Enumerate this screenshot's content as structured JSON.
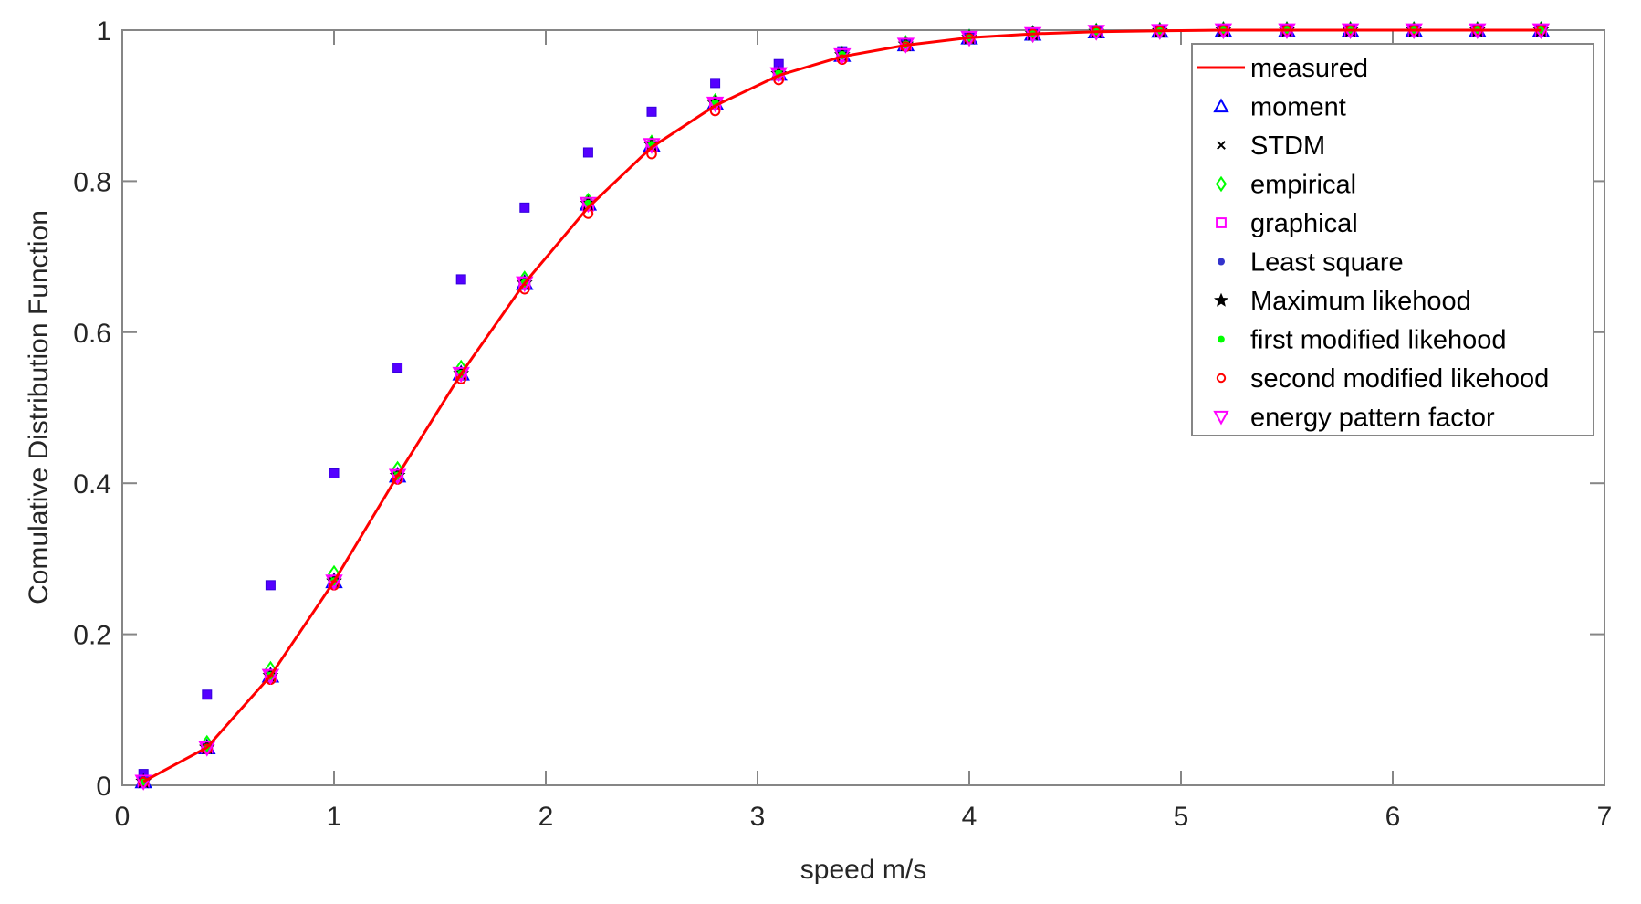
{
  "chart_data": {
    "type": "line",
    "title": "",
    "xlabel": "speed m/s",
    "ylabel": "Comulative Distribution Function",
    "xlim": [
      0,
      7
    ],
    "ylim": [
      0,
      1
    ],
    "xticks": [
      "0",
      "1",
      "2",
      "3",
      "4",
      "5",
      "6",
      "7"
    ],
    "yticks": [
      "0",
      "0.2",
      "0.4",
      "0.6",
      "0.8",
      "1"
    ],
    "grid": false,
    "legend_position": "northeast",
    "x": [
      0.1,
      0.4,
      0.7,
      1.0,
      1.3,
      1.6,
      1.9,
      2.2,
      2.5,
      2.8,
      3.1,
      3.4,
      3.7,
      4.0,
      4.3,
      4.6,
      4.9,
      5.2,
      5.5,
      5.8,
      6.1,
      6.4,
      6.7
    ],
    "series": [
      {
        "name": "measured",
        "style": "line",
        "color": "#ff0000",
        "values": [
          0.005,
          0.05,
          0.145,
          0.27,
          0.41,
          0.545,
          0.665,
          0.765,
          0.845,
          0.9,
          0.94,
          0.965,
          0.98,
          0.99,
          0.995,
          0.998,
          0.999,
          1,
          1,
          1,
          1,
          1,
          1
        ]
      },
      {
        "name": "moment",
        "style": "marker",
        "marker": "triangle-up",
        "color": "#0000ff",
        "values": [
          0.005,
          0.05,
          0.145,
          0.27,
          0.41,
          0.545,
          0.665,
          0.77,
          0.848,
          0.903,
          0.942,
          0.967,
          0.981,
          0.99,
          0.995,
          0.998,
          0.999,
          1,
          1,
          1,
          1,
          1,
          1
        ]
      },
      {
        "name": "STDM",
        "style": "marker",
        "marker": "x",
        "color": "#000000",
        "values": [
          0.005,
          0.05,
          0.145,
          0.27,
          0.41,
          0.545,
          0.665,
          0.77,
          0.848,
          0.903,
          0.942,
          0.967,
          0.981,
          0.99,
          0.995,
          0.998,
          0.999,
          1,
          1,
          1,
          1,
          1,
          1
        ]
      },
      {
        "name": "empirical",
        "style": "marker",
        "marker": "diamond",
        "color": "#00ff00",
        "values": [
          0.006,
          0.055,
          0.153,
          0.28,
          0.418,
          0.552,
          0.67,
          0.773,
          0.85,
          0.905,
          0.943,
          0.968,
          0.982,
          0.99,
          0.995,
          0.998,
          0.999,
          1,
          1,
          1,
          1,
          1,
          1
        ]
      },
      {
        "name": "graphical",
        "style": "marker",
        "marker": "square",
        "color": "#ff00ff",
        "values": [
          0.005,
          0.05,
          0.145,
          0.27,
          0.41,
          0.545,
          0.665,
          0.768,
          0.846,
          0.902,
          0.941,
          0.966,
          0.981,
          0.99,
          0.995,
          0.998,
          0.999,
          1,
          1,
          1,
          1,
          1,
          1
        ]
      },
      {
        "name": "Least square",
        "style": "marker",
        "marker": "point",
        "color": "#0000ff",
        "values": [
          0.015,
          0.12,
          0.265,
          0.413,
          0.553,
          0.67,
          0.765,
          0.838,
          0.892,
          0.93,
          0.955,
          0.972,
          0.983,
          0.99,
          0.995,
          0.998,
          0.999,
          1,
          1,
          1,
          1,
          1,
          1
        ]
      },
      {
        "name": "Maximum likehood",
        "style": "marker",
        "marker": "pentagram",
        "color": "#000000",
        "values": [
          0.005,
          0.05,
          0.145,
          0.27,
          0.41,
          0.545,
          0.665,
          0.77,
          0.848,
          0.903,
          0.942,
          0.967,
          0.981,
          0.99,
          0.995,
          0.998,
          0.999,
          1,
          1,
          1,
          1,
          1,
          1
        ]
      },
      {
        "name": "first modified likehood",
        "style": "marker",
        "marker": "filled-circle",
        "color": "#00ff00",
        "values": [
          0.005,
          0.05,
          0.145,
          0.27,
          0.41,
          0.545,
          0.665,
          0.77,
          0.848,
          0.903,
          0.942,
          0.967,
          0.981,
          0.99,
          0.995,
          0.998,
          0.999,
          1,
          1,
          1,
          1,
          1,
          1
        ]
      },
      {
        "name": "second modified likehood",
        "style": "marker",
        "marker": "circle",
        "color": "#ff0000",
        "values": [
          0.004,
          0.048,
          0.14,
          0.265,
          0.405,
          0.538,
          0.657,
          0.757,
          0.836,
          0.893,
          0.934,
          0.961,
          0.978,
          0.989,
          0.995,
          0.998,
          0.999,
          1,
          1,
          1,
          1,
          1,
          1
        ]
      },
      {
        "name": "energy pattern factor",
        "style": "marker",
        "marker": "triangle-down",
        "color": "#ff00ff",
        "values": [
          0.005,
          0.05,
          0.145,
          0.27,
          0.41,
          0.545,
          0.665,
          0.77,
          0.848,
          0.903,
          0.942,
          0.967,
          0.981,
          0.99,
          0.995,
          0.998,
          0.999,
          1,
          1,
          1,
          1,
          1,
          1
        ]
      }
    ]
  },
  "legend": {
    "entries": [
      {
        "label": "measured",
        "icon": "red-line-icon"
      },
      {
        "label": "moment",
        "icon": "triangle-up-icon"
      },
      {
        "label": "STDM",
        "icon": "x-mark-icon"
      },
      {
        "label": "empirical",
        "icon": "diamond-icon"
      },
      {
        "label": "graphical",
        "icon": "square-icon"
      },
      {
        "label": "Least square",
        "icon": "dot-icon"
      },
      {
        "label": "Maximum likehood",
        "icon": "star-icon"
      },
      {
        "label": "first modified likehood",
        "icon": "filled-circle-icon"
      },
      {
        "label": "second modified likehood",
        "icon": "circle-icon"
      },
      {
        "label": "energy pattern factor",
        "icon": "triangle-down-icon"
      }
    ]
  },
  "axes": {
    "xlabel": "speed m/s",
    "ylabel": "Comulative Distribution Function",
    "axis_color": "#868686"
  }
}
